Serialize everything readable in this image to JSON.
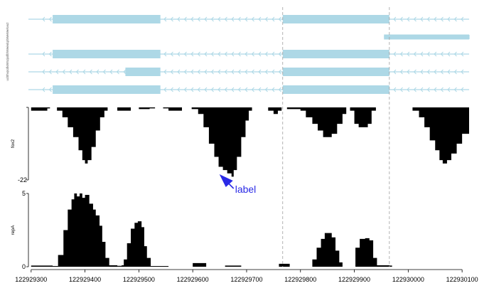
{
  "chart_data": {
    "type": "genome-browser",
    "x_ticks": [
      122929300,
      122929400,
      122929500,
      122929600,
      122929700,
      122929800,
      122929900,
      122930000,
      122930100
    ],
    "x_tick_labels": [
      "122929300",
      "122929400",
      "122929500",
      "122929600",
      "122929700",
      "122929800",
      "122929900",
      "122930000",
      "122930100"
    ],
    "xlim": [
      122929295,
      122930113
    ],
    "highlight_lines": [
      122929767,
      122929965
    ],
    "gene_track": {
      "side_label": "ucl0hvpcdk8Ir5zjodlbhWeiwlcpbWeWerkvu2",
      "strand": "-",
      "transcripts": [
        {
          "line": [
            122929295,
            122930113
          ],
          "exons": [
            [
              122929340,
              122929540
            ],
            [
              122929767,
              122929965
            ]
          ]
        },
        {
          "line": [
            122929955,
            122930113
          ],
          "exons": [
            [
              122929955,
              122930113
            ]
          ]
        },
        {
          "line": [
            122929295,
            122930113
          ],
          "exons": [
            [
              122929340,
              122929540
            ],
            [
              122929767,
              122929965
            ]
          ]
        },
        {
          "line": [
            122929295,
            122930113
          ],
          "exons": [
            [
              122929475,
              122929540
            ],
            [
              122929767,
              122929965
            ]
          ]
        },
        {
          "line": [
            122929295,
            122930113
          ],
          "exons": [
            [
              122929340,
              122929540
            ],
            [
              122929767,
              122929965
            ]
          ]
        }
      ]
    },
    "tracks": [
      {
        "name": "fox2",
        "ylim": [
          -22,
          0
        ],
        "y_tick_labels": [
          "",
          "-22"
        ],
        "points": [
          [
            122929295,
            0
          ],
          [
            122929300,
            -1
          ],
          [
            122929318,
            -1
          ],
          [
            122929330,
            -0.3
          ],
          [
            122929335,
            0
          ],
          [
            122929348,
            -1
          ],
          [
            122929358,
            -3
          ],
          [
            122929368,
            -6
          ],
          [
            122929378,
            -9
          ],
          [
            122929388,
            -13
          ],
          [
            122929395,
            -16
          ],
          [
            122929400,
            -17
          ],
          [
            122929405,
            -16
          ],
          [
            122929412,
            -12
          ],
          [
            122929420,
            -7
          ],
          [
            122929428,
            -3
          ],
          [
            122929436,
            -1
          ],
          [
            122929442,
            0
          ],
          [
            122929460,
            -1
          ],
          [
            122929478,
            -1
          ],
          [
            122929485,
            0
          ],
          [
            122929500,
            -0.5
          ],
          [
            122929520,
            -0.3
          ],
          [
            122929530,
            0
          ],
          [
            122929545,
            -0.3
          ],
          [
            122929555,
            -1
          ],
          [
            122929570,
            -1
          ],
          [
            122929580,
            0
          ],
          [
            122929598,
            -0.5
          ],
          [
            122929610,
            -2
          ],
          [
            122929620,
            -6
          ],
          [
            122929630,
            -11
          ],
          [
            122929640,
            -15
          ],
          [
            122929648,
            -18
          ],
          [
            122929656,
            -19
          ],
          [
            122929664,
            -20
          ],
          [
            122929672,
            -21
          ],
          [
            122929676,
            -19
          ],
          [
            122929682,
            -15
          ],
          [
            122929690,
            -9
          ],
          [
            122929698,
            -4
          ],
          [
            122929704,
            -1
          ],
          [
            122929710,
            0
          ],
          [
            122929730,
            0
          ],
          [
            122929740,
            -1
          ],
          [
            122929750,
            -2
          ],
          [
            122929758,
            -1
          ],
          [
            122929765,
            0
          ],
          [
            122929775,
            -0.5
          ],
          [
            122929790,
            -0.5
          ],
          [
            122929800,
            -1
          ],
          [
            122929810,
            -3
          ],
          [
            122929822,
            -5
          ],
          [
            122929832,
            -7
          ],
          [
            122929842,
            -9
          ],
          [
            122929850,
            -9
          ],
          [
            122929858,
            -8
          ],
          [
            122929868,
            -5
          ],
          [
            122929878,
            -2
          ],
          [
            122929885,
            0
          ],
          [
            122929892,
            -1
          ],
          [
            122929900,
            -5
          ],
          [
            122929908,
            -6
          ],
          [
            122929916,
            -6
          ],
          [
            122929925,
            -5
          ],
          [
            122929932,
            -1
          ],
          [
            122929940,
            0
          ],
          [
            122929998,
            0
          ],
          [
            122930008,
            -1
          ],
          [
            122930020,
            -3
          ],
          [
            122930030,
            -6
          ],
          [
            122930040,
            -10
          ],
          [
            122930050,
            -13
          ],
          [
            122930058,
            -16
          ],
          [
            122930064,
            -17
          ],
          [
            122930072,
            -16
          ],
          [
            122930080,
            -14
          ],
          [
            122930090,
            -11
          ],
          [
            122930100,
            -8
          ],
          [
            122930113,
            -4
          ]
        ]
      },
      {
        "name": "repA",
        "ylim": [
          0,
          5
        ],
        "y_tick_labels": [
          "0",
          "5"
        ],
        "points": [
          [
            122929295,
            0
          ],
          [
            122929300,
            0.08
          ],
          [
            122929330,
            0.08
          ],
          [
            122929340,
            0.05
          ],
          [
            122929350,
            0.8
          ],
          [
            122929360,
            2.5
          ],
          [
            122929368,
            3.9
          ],
          [
            122929375,
            4.6
          ],
          [
            122929380,
            5
          ],
          [
            122929385,
            4.8
          ],
          [
            122929390,
            5
          ],
          [
            122929395,
            4.7
          ],
          [
            122929400,
            4.9
          ],
          [
            122929408,
            4.3
          ],
          [
            122929415,
            3.9
          ],
          [
            122929420,
            3.5
          ],
          [
            122929427,
            2.8
          ],
          [
            122929432,
            1.7
          ],
          [
            122929438,
            0.6
          ],
          [
            122929445,
            0.1
          ],
          [
            122929460,
            0.06
          ],
          [
            122929468,
            0.1
          ],
          [
            122929472,
            0.5
          ],
          [
            122929478,
            1.6
          ],
          [
            122929485,
            2.6
          ],
          [
            122929492,
            3
          ],
          [
            122929498,
            3.1
          ],
          [
            122929505,
            2.7
          ],
          [
            122929510,
            1.4
          ],
          [
            122929515,
            0.6
          ],
          [
            122929522,
            0.05
          ],
          [
            122929540,
            0.05
          ],
          [
            122929555,
            0
          ],
          [
            122929592,
            0
          ],
          [
            122929600,
            0.25
          ],
          [
            122929618,
            0.25
          ],
          [
            122929625,
            0
          ],
          [
            122929655,
            0
          ],
          [
            122929660,
            0.08
          ],
          [
            122929685,
            0.08
          ],
          [
            122929690,
            0
          ],
          [
            122929755,
            0
          ],
          [
            122929760,
            0.2
          ],
          [
            122929775,
            0.2
          ],
          [
            122929780,
            0
          ],
          [
            122929815,
            0
          ],
          [
            122929822,
            0.5
          ],
          [
            122929830,
            1.3
          ],
          [
            122929838,
            1.9
          ],
          [
            122929845,
            2.3
          ],
          [
            122929852,
            2.3
          ],
          [
            122929858,
            2
          ],
          [
            122929865,
            1.1
          ],
          [
            122929872,
            0.3
          ],
          [
            122929878,
            0
          ],
          [
            122929895,
            0
          ],
          [
            122929902,
            1.3
          ],
          [
            122929910,
            1.9
          ],
          [
            122929920,
            1.95
          ],
          [
            122929928,
            1.8
          ],
          [
            122929935,
            0.6
          ],
          [
            122929942,
            0.1
          ],
          [
            122929965,
            0.08
          ],
          [
            122929970,
            0
          ],
          [
            122930113,
            0
          ]
        ]
      }
    ],
    "annotation": {
      "text": "label",
      "x": 122929668,
      "y": -22,
      "track": "fox2",
      "color": "#2a2ae6"
    },
    "colors": {
      "gene": "#add8e6",
      "signal": "#000000",
      "guide": "#a0a0a0"
    },
    "grid": false
  }
}
